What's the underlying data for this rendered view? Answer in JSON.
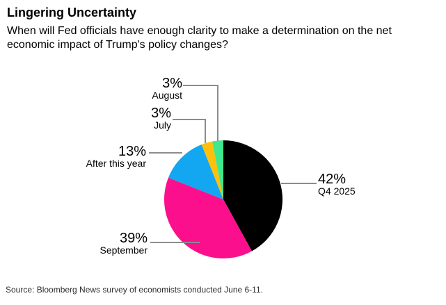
{
  "header": {
    "title": "Lingering Uncertainty",
    "subtitle": "When will Fed officials have enough clarity to make a determination on the net economic impact of Trump's policy changes?"
  },
  "chart_data": {
    "type": "pie",
    "title": "Lingering Uncertainty",
    "question": "When will Fed officials have enough clarity to make a determination on the net economic impact of Trump's policy changes?",
    "start_angle": "12 o'clock",
    "direction": "clockwise",
    "legend_position": "callout-labels",
    "slices": [
      {
        "label": "Q4 2025",
        "value": 42,
        "pct_label": "42%",
        "color": "#000000"
      },
      {
        "label": "September",
        "value": 39,
        "pct_label": "39%",
        "color": "#fb0f8d"
      },
      {
        "label": "After this year",
        "value": 13,
        "pct_label": "13%",
        "color": "#12a7f0"
      },
      {
        "label": "July",
        "value": 3,
        "pct_label": "3%",
        "color": "#fdc00d"
      },
      {
        "label": "August",
        "value": 3,
        "pct_label": "3%",
        "color": "#3fe88c"
      }
    ]
  },
  "footer": {
    "source": "Source: Bloomberg News survey of economists conducted June 6-11."
  },
  "colors": {
    "leader_line": "#8c8c8c",
    "background": "#ffffff",
    "text": "#000000"
  }
}
